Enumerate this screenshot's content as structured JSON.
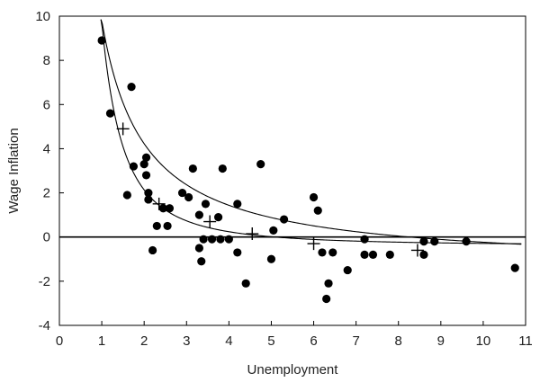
{
  "chart_data": {
    "type": "scatter",
    "xlabel": "Unemployment",
    "ylabel": "Wage Inflation",
    "xlim": [
      0,
      11
    ],
    "ylim": [
      -4,
      10
    ],
    "x_ticks": [
      "0",
      "1",
      "2",
      "3",
      "4",
      "5",
      "6",
      "7",
      "8",
      "9",
      "10",
      "11"
    ],
    "y_ticks": [
      "-4",
      "-2",
      "0",
      "2",
      "4",
      "6",
      "8",
      "10"
    ],
    "grid": false,
    "reference_line_y": 0,
    "points": [
      {
        "x": 1.0,
        "y": 8.9
      },
      {
        "x": 1.2,
        "y": 5.6
      },
      {
        "x": 1.6,
        "y": 1.9
      },
      {
        "x": 1.7,
        "y": 6.8
      },
      {
        "x": 1.75,
        "y": 3.2
      },
      {
        "x": 2.0,
        "y": 3.3
      },
      {
        "x": 2.05,
        "y": 3.6
      },
      {
        "x": 2.05,
        "y": 2.8
      },
      {
        "x": 2.1,
        "y": 2.0
      },
      {
        "x": 2.1,
        "y": 1.7
      },
      {
        "x": 2.2,
        "y": -0.6
      },
      {
        "x": 2.3,
        "y": 0.5
      },
      {
        "x": 2.45,
        "y": 1.3
      },
      {
        "x": 2.55,
        "y": 0.5
      },
      {
        "x": 2.6,
        "y": 1.3
      },
      {
        "x": 2.9,
        "y": 2.0
      },
      {
        "x": 3.05,
        "y": 1.8
      },
      {
        "x": 3.15,
        "y": 3.1
      },
      {
        "x": 3.3,
        "y": 1.0
      },
      {
        "x": 3.3,
        "y": -0.5
      },
      {
        "x": 3.35,
        "y": -1.1
      },
      {
        "x": 3.4,
        "y": -0.1
      },
      {
        "x": 3.45,
        "y": 1.5
      },
      {
        "x": 3.6,
        "y": -0.1
      },
      {
        "x": 3.75,
        "y": 0.9
      },
      {
        "x": 3.8,
        "y": -0.1
      },
      {
        "x": 3.85,
        "y": 3.1
      },
      {
        "x": 4.0,
        "y": -0.1
      },
      {
        "x": 4.2,
        "y": 1.5
      },
      {
        "x": 4.2,
        "y": -0.7
      },
      {
        "x": 4.4,
        "y": -2.1
      },
      {
        "x": 4.75,
        "y": 3.3
      },
      {
        "x": 5.0,
        "y": -1.0
      },
      {
        "x": 5.05,
        "y": 0.3
      },
      {
        "x": 5.3,
        "y": 0.8
      },
      {
        "x": 6.0,
        "y": 1.8
      },
      {
        "x": 6.1,
        "y": 1.2
      },
      {
        "x": 6.2,
        "y": -0.7
      },
      {
        "x": 6.3,
        "y": -2.8
      },
      {
        "x": 6.35,
        "y": -2.1
      },
      {
        "x": 6.45,
        "y": -0.7
      },
      {
        "x": 6.8,
        "y": -1.5
      },
      {
        "x": 7.2,
        "y": -0.1
      },
      {
        "x": 7.2,
        "y": -0.8
      },
      {
        "x": 7.4,
        "y": -0.8
      },
      {
        "x": 7.8,
        "y": -0.8
      },
      {
        "x": 8.6,
        "y": -0.2
      },
      {
        "x": 8.6,
        "y": -0.8
      },
      {
        "x": 8.85,
        "y": -0.2
      },
      {
        "x": 9.6,
        "y": -0.2
      },
      {
        "x": 10.75,
        "y": -1.4
      }
    ],
    "plus_markers": [
      {
        "x": 1.5,
        "y": 4.9
      },
      {
        "x": 2.35,
        "y": 1.5
      },
      {
        "x": 3.55,
        "y": 0.7
      },
      {
        "x": 4.55,
        "y": 0.15
      },
      {
        "x": 6.0,
        "y": -0.3
      },
      {
        "x": 8.45,
        "y": -0.6
      }
    ],
    "curves": [
      {
        "form": "a + b / x",
        "a": -1.35,
        "b": 11.15,
        "x_range": [
          0.98,
          10.9
        ]
      },
      {
        "form": "a + b / x^2",
        "a": -0.39,
        "b": 10.1,
        "x_range": [
          0.98,
          10.9
        ]
      }
    ]
  }
}
